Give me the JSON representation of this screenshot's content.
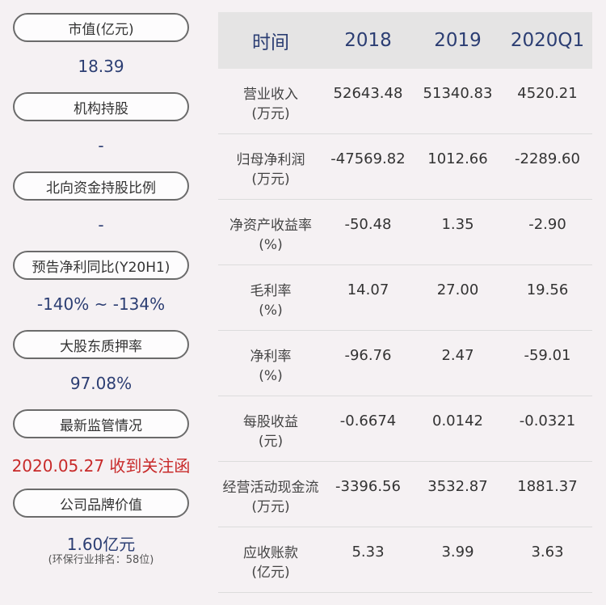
{
  "metrics": [
    {
      "label": "市值(亿元)",
      "value": "18.39"
    },
    {
      "label": "机构持股",
      "value": "-"
    },
    {
      "label": "北向资金持股比例",
      "value": "-"
    },
    {
      "label": "预告净利同比(Y20H1)",
      "value": "-140% ~ -134%"
    },
    {
      "label": "大股东质押率",
      "value": "97.08%"
    },
    {
      "label": "最新监管情况",
      "value": "2020.05.27 收到关注函"
    },
    {
      "label": "公司品牌价值",
      "value": "1.60亿元",
      "note": "(环保行业排名：58位)"
    }
  ],
  "table": {
    "headers": [
      "时间",
      "2018",
      "2019",
      "2020Q1"
    ],
    "rows": [
      {
        "label": "营业收入",
        "unit": "(万元)",
        "values": [
          "52643.48",
          "51340.83",
          "4520.21"
        ]
      },
      {
        "label": "归母净利润",
        "unit": "(万元)",
        "values": [
          "-47569.82",
          "1012.66",
          "-2289.60"
        ]
      },
      {
        "label": "净资产收益率",
        "unit": "(%)",
        "values": [
          "-50.48",
          "1.35",
          "-2.90"
        ]
      },
      {
        "label": "毛利率",
        "unit": "(%)",
        "values": [
          "14.07",
          "27.00",
          "19.56"
        ]
      },
      {
        "label": "净利率",
        "unit": "(%)",
        "values": [
          "-96.76",
          "2.47",
          "-59.01"
        ]
      },
      {
        "label": "每股收益",
        "unit": "(元)",
        "values": [
          "-0.6674",
          "0.0142",
          "-0.0321"
        ]
      },
      {
        "label": "经营活动现金流",
        "unit": "(万元)",
        "values": [
          "-3396.56",
          "3532.87",
          "1881.37"
        ]
      },
      {
        "label": "应收账款",
        "unit": "(亿元)",
        "values": [
          "5.33",
          "3.99",
          "3.63"
        ]
      }
    ]
  },
  "colors": {
    "value_blue": "#2c3e73",
    "alert_red": "#c82a2a"
  }
}
